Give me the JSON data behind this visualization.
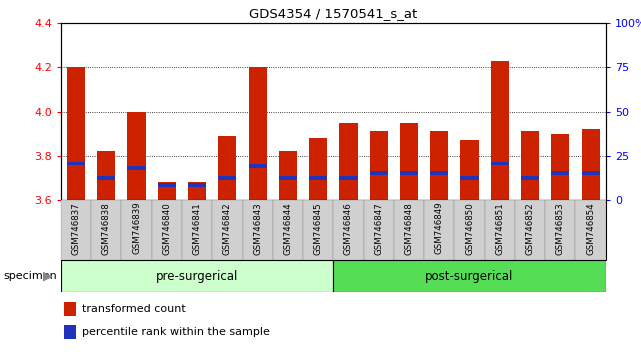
{
  "title": "GDS4354 / 1570541_s_at",
  "samples": [
    "GSM746837",
    "GSM746838",
    "GSM746839",
    "GSM746840",
    "GSM746841",
    "GSM746842",
    "GSM746843",
    "GSM746844",
    "GSM746845",
    "GSM746846",
    "GSM746847",
    "GSM746848",
    "GSM746849",
    "GSM746850",
    "GSM746851",
    "GSM746852",
    "GSM746853",
    "GSM746854"
  ],
  "red_values": [
    4.2,
    3.82,
    4.0,
    3.68,
    3.68,
    3.89,
    4.2,
    3.82,
    3.88,
    3.95,
    3.91,
    3.95,
    3.91,
    3.87,
    4.23,
    3.91,
    3.9,
    3.92
  ],
  "blue_values": [
    3.765,
    3.7,
    3.745,
    3.67,
    3.67,
    3.7,
    3.755,
    3.7,
    3.7,
    3.7,
    3.72,
    3.72,
    3.72,
    3.7,
    3.765,
    3.7,
    3.72,
    3.72
  ],
  "pre_surgical_count": 9,
  "post_surgical_count": 9,
  "ylim_left": [
    3.6,
    4.4
  ],
  "ylim_right": [
    0,
    100
  ],
  "yticks_left": [
    3.6,
    3.8,
    4.0,
    4.2,
    4.4
  ],
  "yticks_right": [
    0,
    25,
    50,
    75,
    100
  ],
  "grid_yticks": [
    3.8,
    4.0,
    4.2
  ],
  "bar_color_red": "#cc2200",
  "bar_color_blue": "#2233bb",
  "pre_surgical_color": "#ccffcc",
  "post_surgical_color": "#55dd55",
  "bg_gray": "#d0d0d0",
  "pre_surgical_label": "pre-surgerical",
  "post_surgical_label": "post-surgerical",
  "specimen_label": "specimen",
  "legend_red_label": "transformed count",
  "legend_blue_label": "percentile rank within the sample"
}
